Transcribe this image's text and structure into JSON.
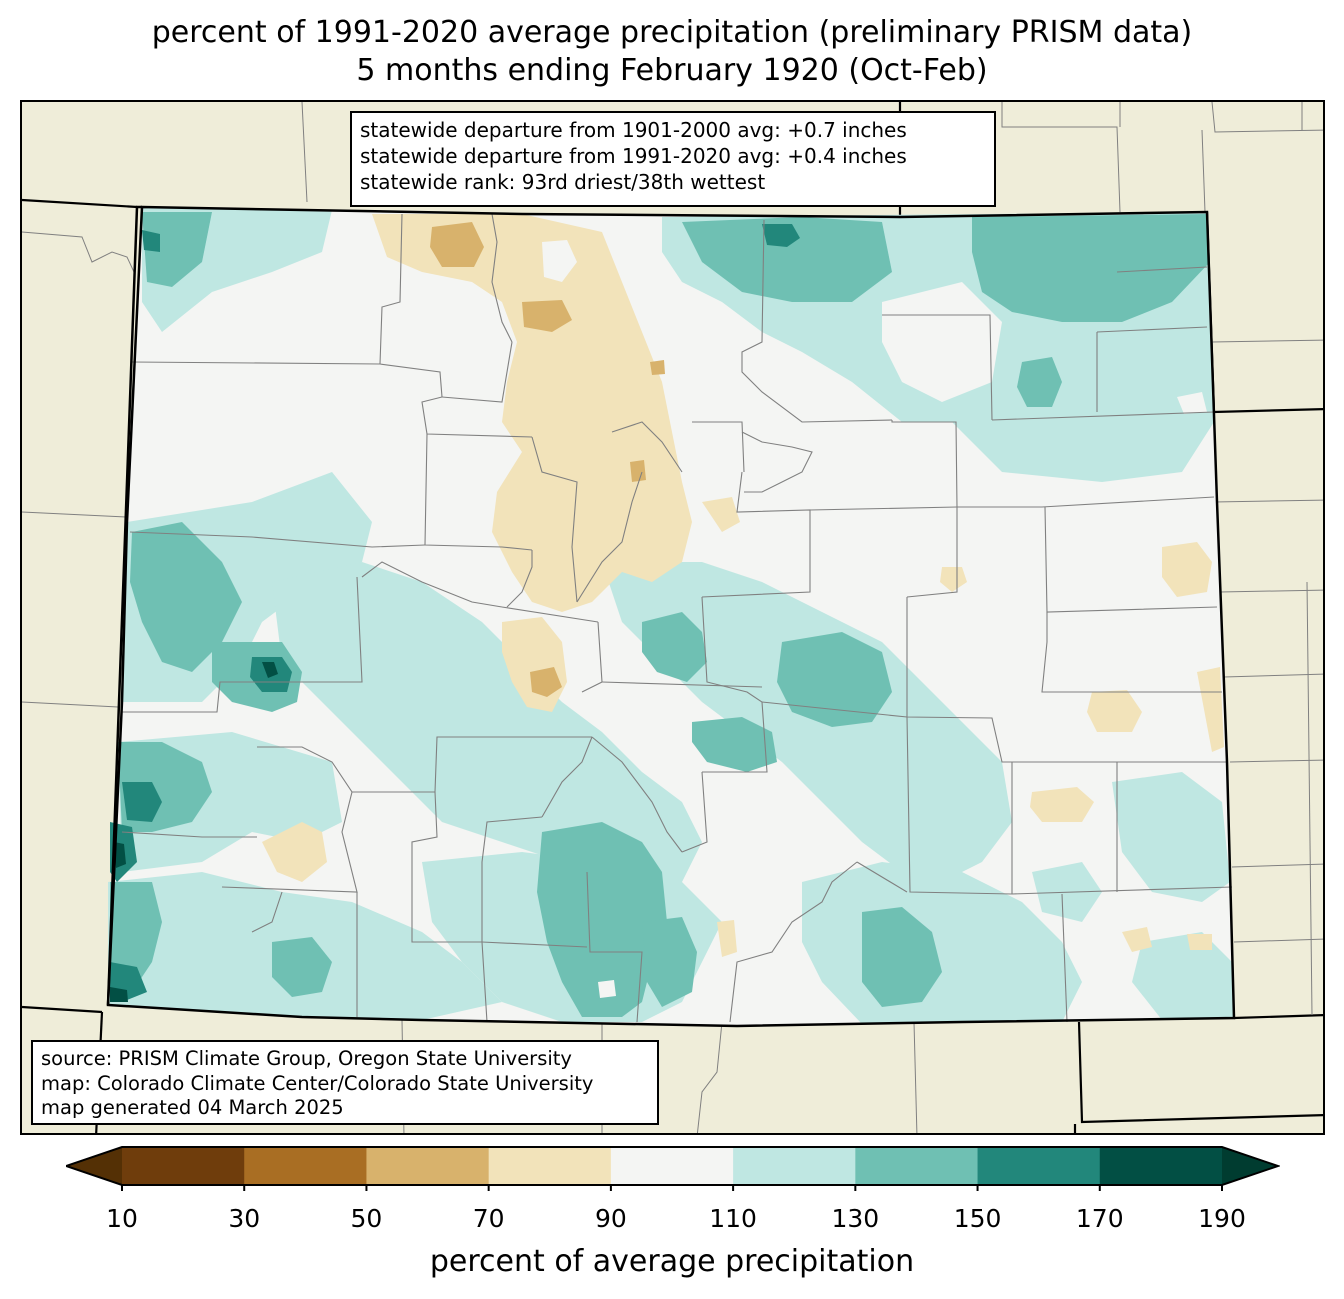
{
  "title": {
    "line1": "percent of 1991-2020 average precipitation (preliminary PRISM data)",
    "line2": "5 months ending February 1920 (Oct-Feb)"
  },
  "stats_box": {
    "line1": "statewide departure from 1901-2000 avg: +0.7 inches",
    "line2": "statewide departure from 1991-2020 avg: +0.4 inches",
    "line3": "statewide rank: 93rd driest/38th wettest"
  },
  "source_box": {
    "line1": "source: PRISM Climate Group, Oregon State University",
    "line2": "map: Colorado Climate Center/Colorado State University",
    "line3": "map generated 04 March 2025"
  },
  "colorbar": {
    "label": "percent of average precipitation",
    "ticks": [
      "10",
      "30",
      "50",
      "70",
      "90",
      "110",
      "130",
      "150",
      "170",
      "190"
    ],
    "colors": [
      "#6f3d0c",
      "#a96e23",
      "#d8b26c",
      "#f2e3ba",
      "#f4f5f3",
      "#bfe7e2",
      "#6fc0b3",
      "#22877b",
      "#024f44"
    ],
    "extend_low_color": "#543005",
    "extend_high_color": "#003c30"
  },
  "map_colors": {
    "background_land": "#efedd9",
    "state_border": "#000000",
    "county_line": "#808080"
  }
}
